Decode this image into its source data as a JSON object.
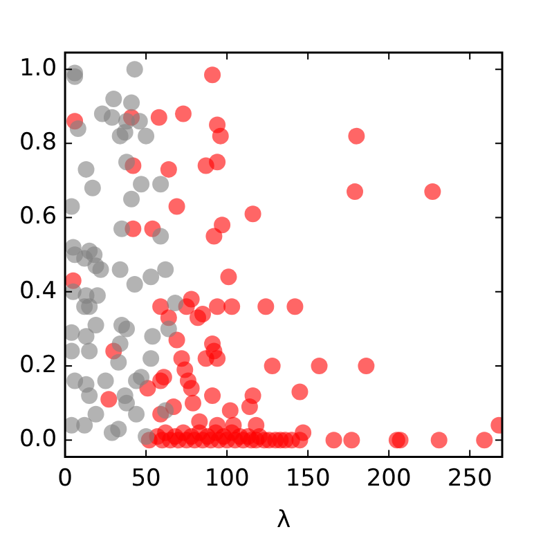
{
  "chart_data": {
    "type": "scatter",
    "xlabel": "λ",
    "xlim": [
      0,
      270
    ],
    "ylim": [
      -0.045,
      1.045
    ],
    "xticks": [
      0,
      50,
      100,
      150,
      200,
      250
    ],
    "yticks": [
      {
        "value": 0,
        "label": "0.0"
      },
      {
        "value": 0.2,
        "label": "0.2"
      },
      {
        "value": 0.4,
        "label": "0.4"
      },
      {
        "value": 0.6,
        "label": "0.6"
      },
      {
        "value": 0.8,
        "label": "0.8"
      },
      {
        "value": 1,
        "label": "1.0"
      }
    ],
    "grid": false,
    "legend": false,
    "marker": "circle",
    "series": [
      {
        "color": "#808080",
        "x": [
          6,
          6,
          43,
          30,
          41,
          23,
          29,
          38,
          46,
          8,
          34,
          37,
          50,
          38,
          13,
          17,
          47,
          59,
          4,
          41,
          35,
          59,
          5,
          15,
          6,
          12,
          18,
          19,
          22,
          34,
          43,
          53,
          62,
          5,
          13,
          20,
          12,
          15,
          68,
          19,
          35,
          38,
          64,
          4,
          13,
          54,
          34,
          4,
          15,
          33,
          53,
          6,
          13,
          25,
          44,
          37,
          15,
          38,
          19,
          44,
          4,
          12,
          33,
          29,
          50,
          62,
          47
        ],
        "values": [
          0.99,
          0.98,
          1.0,
          0.92,
          0.91,
          0.88,
          0.87,
          0.86,
          0.86,
          0.84,
          0.82,
          0.83,
          0.82,
          0.75,
          0.73,
          0.68,
          0.69,
          0.69,
          0.63,
          0.65,
          0.57,
          0.55,
          0.52,
          0.51,
          0.5,
          0.49,
          0.5,
          0.47,
          0.46,
          0.46,
          0.42,
          0.44,
          0.46,
          0.4,
          0.39,
          0.39,
          0.36,
          0.36,
          0.37,
          0.31,
          0.31,
          0.3,
          0.3,
          0.29,
          0.28,
          0.28,
          0.26,
          0.24,
          0.24,
          0.21,
          0.22,
          0.16,
          0.15,
          0.16,
          0.16,
          0.12,
          0.12,
          0.1,
          0.07,
          0.07,
          0.04,
          0.04,
          0.03,
          0.02,
          0.01,
          0.08,
          0.17
        ]
      },
      {
        "color": "#ff0000",
        "x": [
          91,
          6,
          41,
          58,
          73,
          94,
          96,
          42,
          64,
          87,
          94,
          69,
          116,
          97,
          92,
          42,
          54,
          180,
          179,
          227,
          5,
          101,
          59,
          64,
          78,
          75,
          85,
          82,
          94,
          103,
          124,
          128,
          30,
          69,
          91,
          92,
          87,
          94,
          72,
          74,
          61,
          59,
          76,
          78,
          51,
          27,
          91,
          116,
          114,
          79,
          67,
          102,
          59,
          83,
          104,
          118,
          94,
          142,
          157,
          186,
          145,
          147,
          166,
          177,
          205,
          207,
          231,
          259,
          268,
          52,
          57,
          60,
          62,
          65,
          68,
          70,
          73,
          75,
          78,
          80,
          83,
          85,
          88,
          90,
          93,
          95,
          98,
          100,
          103,
          105,
          108,
          110,
          113,
          115,
          118,
          120,
          123,
          126,
          130,
          133,
          136,
          140,
          145
        ],
        "values": [
          0.985,
          0.86,
          0.87,
          0.87,
          0.88,
          0.85,
          0.82,
          0.74,
          0.73,
          0.74,
          0.75,
          0.63,
          0.61,
          0.58,
          0.55,
          0.57,
          0.57,
          0.82,
          0.67,
          0.67,
          0.43,
          0.44,
          0.36,
          0.33,
          0.38,
          0.36,
          0.34,
          0.33,
          0.36,
          0.36,
          0.36,
          0.2,
          0.24,
          0.27,
          0.26,
          0.24,
          0.22,
          0.22,
          0.22,
          0.19,
          0.17,
          0.16,
          0.16,
          0.14,
          0.14,
          0.11,
          0.12,
          0.12,
          0.09,
          0.1,
          0.09,
          0.08,
          0.07,
          0.05,
          0.04,
          0.04,
          0.04,
          0.36,
          0.2,
          0.2,
          0.13,
          0.02,
          0,
          0,
          0,
          0,
          0,
          0,
          0.04,
          0,
          0.01,
          0,
          0.02,
          0,
          0.01,
          0,
          0.02,
          0,
          0.01,
          0,
          0.02,
          0,
          0.01,
          0,
          0.02,
          0,
          0.01,
          0,
          0.02,
          0,
          0.01,
          0,
          0.01,
          0,
          0,
          0.01,
          0,
          0,
          0,
          0,
          0,
          0,
          0
        ]
      }
    ]
  }
}
